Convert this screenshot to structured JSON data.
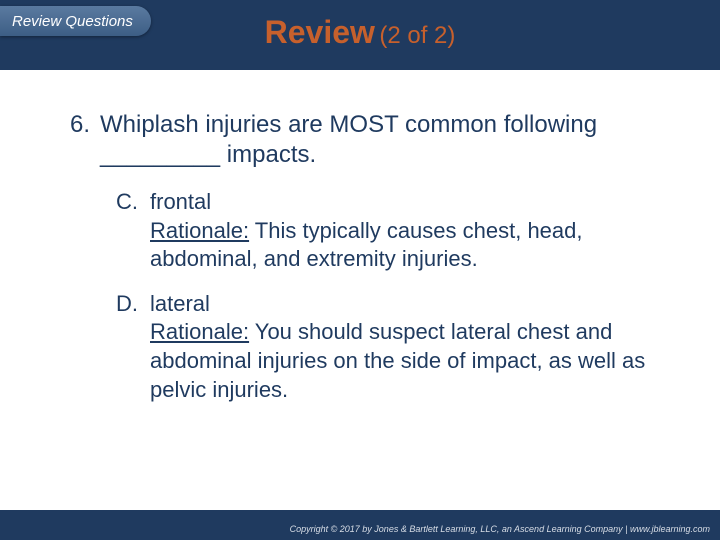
{
  "colors": {
    "band": "#1f3a5f",
    "accent": "#c7602c",
    "text": "#1f3a5f",
    "tab_top": "#5a7aa0",
    "tab_bottom": "#3d5e85",
    "copyright": "#d7dde6",
    "background": "#ffffff"
  },
  "typography": {
    "title_main_size": 32,
    "title_sub_size": 24,
    "question_size": 24,
    "option_size": 22,
    "tab_size": 15,
    "copyright_size": 9
  },
  "tab_label": "Review Questions",
  "title": {
    "main": "Review",
    "sub": "(2 of 2)"
  },
  "question": {
    "number": "6.",
    "text": "Whiplash injuries are MOST common following _________ impacts."
  },
  "options": [
    {
      "letter": "C.",
      "answer": "frontal",
      "rationale_label": "Rationale:",
      "rationale_text": " This typically causes chest, head, abdominal, and extremity injuries."
    },
    {
      "letter": "D.",
      "answer": "lateral",
      "rationale_label": "Rationale:",
      "rationale_text": " You should suspect lateral chest and abdominal injuries on the side of impact, as well as pelvic injuries."
    }
  ],
  "copyright": "Copyright © 2017 by Jones & Bartlett Learning, LLC, an Ascend Learning Company | www.jblearning.com"
}
